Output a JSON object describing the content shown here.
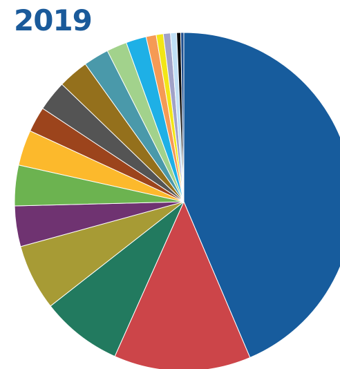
{
  "chart_data": {
    "type": "pie",
    "title": "2019",
    "start": "12 o'clock",
    "direction": "clockwise",
    "legend": "none",
    "values": [
      45.0,
      13.5,
      8.0,
      6.5,
      4.0,
      4.0,
      3.5,
      2.5,
      3.0,
      3.0,
      2.5,
      2.0,
      2.0,
      1.0,
      0.7,
      0.7,
      0.6,
      0.4,
      0.3
    ],
    "colors": [
      "#175c9d",
      "#cc4549",
      "#227a5f",
      "#a79b35",
      "#6f3371",
      "#6cb350",
      "#fcb92c",
      "#9c441c",
      "#545454",
      "#94701c",
      "#4a99aa",
      "#a2d28c",
      "#1eb0e6",
      "#f59a55",
      "#f2e616",
      "#a1a2c7",
      "#c0dff5",
      "#0a0a0a",
      "#1f4e8d"
    ]
  }
}
